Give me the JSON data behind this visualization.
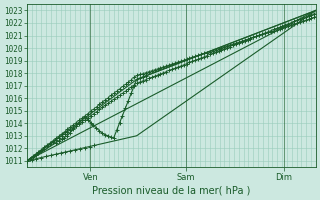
{
  "title": "Pression niveau de la mer( hPa )",
  "ylim": [
    1010.5,
    1023.5
  ],
  "yticks": [
    1011,
    1012,
    1013,
    1014,
    1015,
    1016,
    1017,
    1018,
    1019,
    1020,
    1021,
    1022,
    1023
  ],
  "xtick_labels": [
    "Ven",
    "Sam",
    "Dim"
  ],
  "xtick_positions": [
    0.22,
    0.55,
    0.89
  ],
  "bg_color": "#cce8e0",
  "grid_color": "#99ccbb",
  "line_color": "#1a5c2a",
  "text_color": "#1a5c2a",
  "axis_color": "#1a5c2a",
  "n_vgrid": 60,
  "figsize": [
    3.2,
    2.0
  ],
  "dpi": 100
}
